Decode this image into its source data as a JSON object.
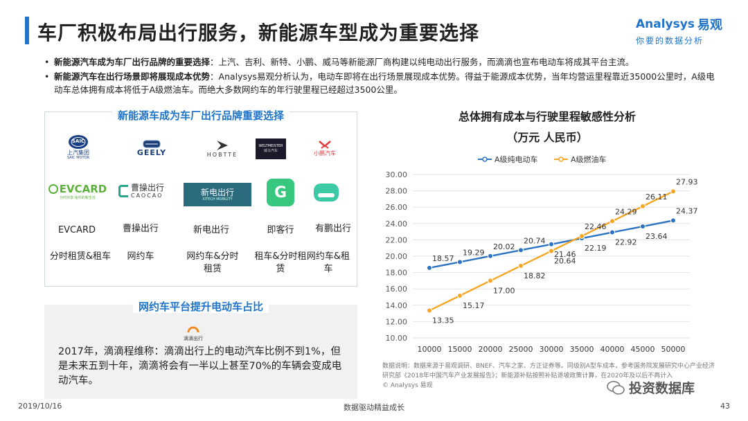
{
  "title": "车厂积极布局出行服务，新能源车型成为重要选择",
  "brand": {
    "name_en": "Analysys",
    "name_cn": "易观",
    "slogan": "你要的数据分析"
  },
  "bullets": [
    {
      "bold": "新能源汽车成为车厂出行品牌的重要选择",
      "text": "：上汽、吉利、新特、小鹏、威马等新能源厂商构建以纯电动出行服务，而滴滴也宣布电动车将成其平台主流。"
    },
    {
      "bold": "新能源汽车在出行场景即将展现成本优势",
      "text": "：Analysys易观分析认为，电动车即将在出行场景展现成本优势。得益于能源成本优势，当年均营运里程靠近35000公里时，A级电动车总体拥有成本将低于A级燃油车。而绝大多数网约车的年行驶里程已经超过3500公里。"
    }
  ],
  "brands_panel": {
    "heading": "新能源车成为车厂出行品牌重要选择",
    "logos": [
      {
        "text": "SAIC",
        "sub": "上汽集团",
        "sub2": "SAIC MOTOR"
      },
      {
        "text": "GEELY"
      },
      {
        "text": "HOBTTE"
      },
      {
        "text": "WELTMEISTER",
        "sub": "威马汽车"
      },
      {
        "text": "小鹏汽车"
      },
      {
        "text": "EVCARD",
        "sub": "分时共享 给你的新生活"
      },
      {
        "text": "曹操出行",
        "sub": "CAOCAO"
      },
      {
        "text": "新电出行",
        "sub": "XITECH MOBILITY"
      },
      {
        "text": "G"
      },
      {
        "text": ""
      }
    ],
    "names": [
      "EVCARD",
      "曹操出行",
      "新电出行",
      "即客行",
      "有鹏出行"
    ],
    "types": [
      "分时租赁&租车",
      "网约车",
      "网约车&分时租赁",
      "租车&分时租赁",
      "网约车&租车"
    ]
  },
  "didi_panel": {
    "heading": "网约车平台提升电动车占比",
    "logo_text": "滴滴出行",
    "text": "2017年，滴滴程维称：滴滴出行上的电动汽车比例不到1%，但是未来五到十年，滴滴将会有一半以上甚至70%的车辆会变成电动汽车。"
  },
  "chart_data": {
    "type": "line",
    "title": "总体拥有成本与行驶里程敏感性分析",
    "subtitle": "（万元 人民币）",
    "x": [
      10000,
      15000,
      20000,
      25000,
      30000,
      35000,
      40000,
      45000,
      50000
    ],
    "series": [
      {
        "name": "A级纯电动车",
        "color": "#2b73c2",
        "values": [
          18.57,
          19.29,
          20.02,
          20.74,
          21.46,
          22.19,
          22.92,
          23.64,
          24.37
        ]
      },
      {
        "name": "A级燃油车",
        "color": "#f5a623",
        "values": [
          13.35,
          15.17,
          17.0,
          18.82,
          20.64,
          22.46,
          24.29,
          26.11,
          27.93
        ]
      }
    ],
    "value_labels": [
      [
        "18.57",
        "19.29",
        "20.02",
        "20.74",
        "21.46",
        "22.19",
        "22.92",
        "23.64",
        "24.37"
      ],
      [
        "13.35",
        "15.17",
        "17.00",
        "18.82",
        "20.64",
        "22.46",
        "24.29",
        "26.11",
        "27.93"
      ]
    ],
    "ylim": [
      10,
      30
    ],
    "yticks": [
      "10.00",
      "12.00",
      "14.00",
      "16.00",
      "18.00",
      "20.00",
      "22.00",
      "24.00",
      "26.00",
      "28.00",
      "30.00"
    ],
    "grid": true,
    "legend": "top-left"
  },
  "note": {
    "text": "数据说明：数据来源于易观调研、BNEF、汽车之家、方正证券等。同级别A型车成本，参考国务院发展研究中心产业经济研究部《2018年中国汽车产业发展报告》；新能源补贴按照补贴退坡政策计算，在2020年及以后不再计入",
    "copyright": "© Analysys 易观"
  },
  "footer": {
    "date": "2019/10/16",
    "slogan": "数据驱动精益成长",
    "page": "43"
  },
  "wechat": "投资数据库"
}
